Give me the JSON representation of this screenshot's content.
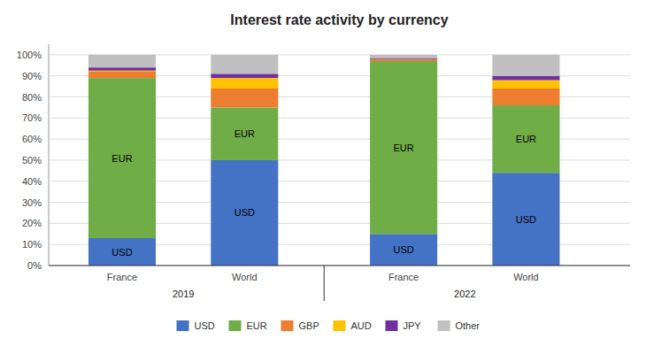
{
  "chart_data": {
    "type": "bar",
    "stacked": true,
    "title": "Interest rate activity by currency",
    "categories": [
      "France",
      "World",
      "France",
      "World"
    ],
    "annotations": [
      "2019",
      "2022"
    ],
    "series": [
      {
        "name": "USD",
        "color": "#4472C4",
        "values": [
          13,
          50,
          15,
          44
        ]
      },
      {
        "name": "EUR",
        "color": "#70AD47",
        "values": [
          76,
          25,
          82,
          32
        ]
      },
      {
        "name": "GBP",
        "color": "#ED7D31",
        "values": [
          3,
          9,
          1,
          8
        ]
      },
      {
        "name": "AUD",
        "color": "#FFC000",
        "values": [
          0.5,
          5,
          0,
          4
        ]
      },
      {
        "name": "JPY",
        "color": "#7030A0",
        "values": [
          1.5,
          2,
          0.5,
          2
        ]
      },
      {
        "name": "Other",
        "color": "#C0C0C0",
        "values": [
          6,
          9,
          1.5,
          10
        ]
      }
    ],
    "ylim": [
      0,
      105
    ],
    "yticks": [
      {
        "value": 0,
        "label": "0%"
      },
      {
        "value": 10,
        "label": "10%"
      },
      {
        "value": 20,
        "label": "20%"
      },
      {
        "value": 30,
        "label": "30%"
      },
      {
        "value": 40,
        "label": "40%"
      },
      {
        "value": 50,
        "label": "50%"
      },
      {
        "value": 60,
        "label": "60%"
      },
      {
        "value": 70,
        "label": "70%"
      },
      {
        "value": 80,
        "label": "80%"
      },
      {
        "value": 90,
        "label": "90%"
      },
      {
        "value": 100,
        "label": "100%"
      }
    ],
    "grid": true,
    "legend": "bottom"
  }
}
